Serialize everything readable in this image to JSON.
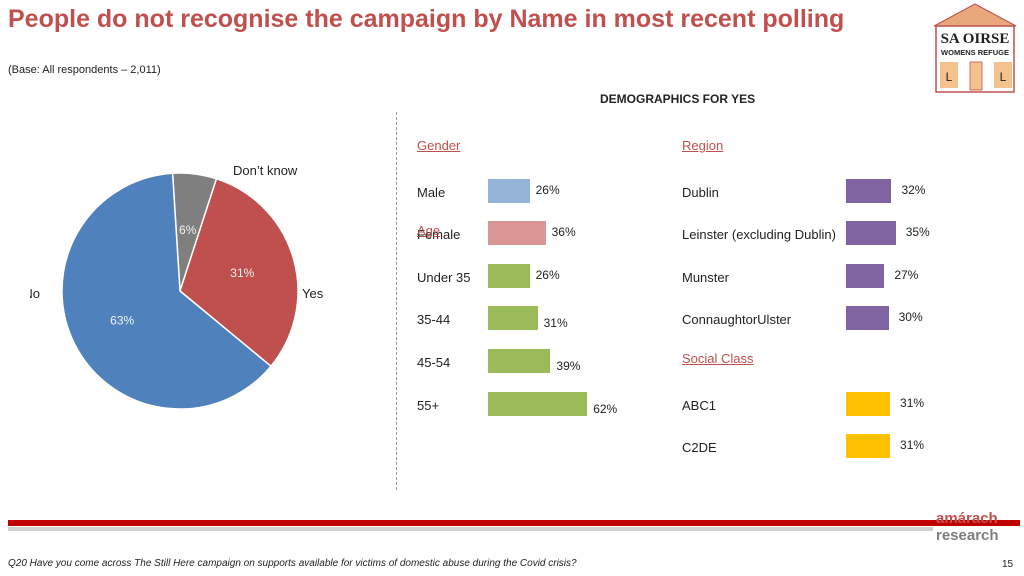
{
  "title": "People do not recognise the campaign by Name in most recent polling",
  "subtitle": "(Base: All respondents – 2,011)",
  "logo": {
    "line1": "SA OIRSE",
    "line2": "WOMENS REFUGE",
    "door_letters": [
      "L",
      "L"
    ]
  },
  "demographics_heading": "DEMOGRAPHICS FOR YES",
  "colors": {
    "title": "#c0504d",
    "pie_no": "#4f81bd",
    "pie_yes": "#c0504d",
    "pie_dontknow": "#7f7f7f",
    "male": "#95b3d7",
    "female": "#d99694",
    "age": "#9bbb59",
    "region": "#8064a2",
    "social": "#ffc000"
  },
  "chart_data": [
    {
      "type": "pie",
      "slices": [
        {
          "label": "No",
          "value": 63,
          "value_label": "63%"
        },
        {
          "label": "Yes",
          "value": 31,
          "value_label": "31%"
        },
        {
          "label": "Don’t know",
          "value": 6,
          "value_label": "6%"
        }
      ]
    },
    {
      "type": "bar",
      "groups": [
        {
          "heading": "Gender",
          "categories": [
            "Male",
            "Female"
          ],
          "values": [
            26,
            36
          ],
          "labels": [
            "26%",
            "36%"
          ]
        },
        {
          "heading": "Age",
          "categories": [
            "Under 35",
            "35-44",
            "45-54",
            "55+"
          ],
          "values": [
            26,
            31,
            39,
            62
          ],
          "labels": [
            "26%",
            "31%",
            "39%",
            "62%"
          ]
        },
        {
          "heading": "Region",
          "categories": [
            "Dublin",
            "Leinster (excluding Dublin)",
            "Munster",
            "ConnaughtorUlster"
          ],
          "values": [
            32,
            35,
            27,
            30
          ],
          "labels": [
            "32%",
            "35%",
            "27%",
            "30%"
          ]
        },
        {
          "heading": "Social Class",
          "categories": [
            "ABC1",
            "C2DE"
          ],
          "values": [
            31,
            31
          ],
          "labels": [
            "31%",
            "31%"
          ]
        }
      ]
    }
  ],
  "footer": {
    "question": "Q20 Have you come across The Still Here campaign on supports available for victims of domestic abuse during the Covid crisis?",
    "page_number": "15",
    "brand_line1": "amárach",
    "brand_line2": "research"
  }
}
